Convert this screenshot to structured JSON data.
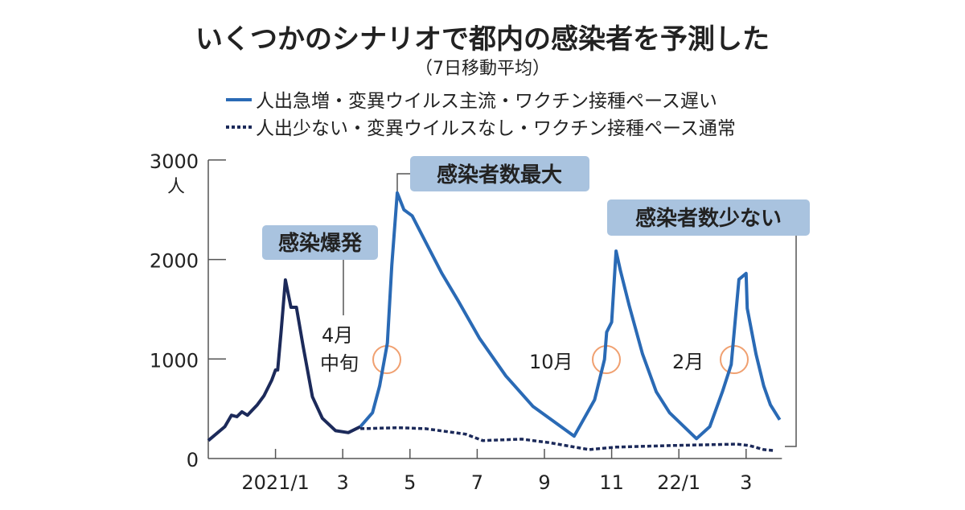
{
  "chart_data": {
    "type": "line",
    "title": "いくつかのシナリオで都内の感染者を予測した",
    "subtitle": "（7日移動平均）",
    "xlabel": "",
    "ylabel": "人",
    "ylim": [
      0,
      3000
    ],
    "xlim": [
      "2020-11-01",
      "2022-04-03"
    ],
    "y_ticks": [
      "0",
      "1000",
      "2000",
      "3000"
    ],
    "y_tick_values": [
      0,
      1000,
      2000,
      3000
    ],
    "x_ticks": [
      {
        "label": "2021/1",
        "date": "2021-01-01"
      },
      {
        "label": "3",
        "date": "2021-03-01"
      },
      {
        "label": "5",
        "date": "2021-05-01"
      },
      {
        "label": "7",
        "date": "2021-07-01"
      },
      {
        "label": "9",
        "date": "2021-09-01"
      },
      {
        "label": "11",
        "date": "2021-11-01"
      },
      {
        "label": "22/1",
        "date": "2022-01-01"
      },
      {
        "label": "3",
        "date": "2022-03-01"
      }
    ],
    "grid": false,
    "legend_position": "top",
    "series": [
      {
        "name": "",
        "style": "solid",
        "color": "#1c2a5a",
        "x": [
          "2020-11-01",
          "2020-11-16",
          "2020-11-22",
          "2020-11-27",
          "2020-12-01",
          "2020-12-06",
          "2020-12-15",
          "2020-12-21",
          "2020-12-28",
          "2021-01-01",
          "2021-01-03",
          "2021-01-06",
          "2021-01-10",
          "2021-01-15",
          "2021-01-20",
          "2021-01-26",
          "2021-02-04",
          "2021-02-13",
          "2021-02-25",
          "2021-03-06",
          "2021-03-17"
        ],
        "y": [
          180,
          320,
          435,
          420,
          470,
          435,
          540,
          630,
          785,
          890,
          890,
          1270,
          1795,
          1520,
          1520,
          1130,
          620,
          405,
          280,
          260,
          320
        ]
      },
      {
        "name": "人出急増・変異ウイルス主流・ワクチン接種ペース遅い",
        "style": "solid",
        "color": "#2a6ab5",
        "x": [
          "2021-03-17",
          "2021-03-28",
          "2021-04-04",
          "2021-04-11",
          "2021-04-15",
          "2021-04-20",
          "2021-04-26",
          "2021-05-03",
          "2021-05-15",
          "2021-05-30",
          "2021-06-14",
          "2021-07-03",
          "2021-07-27",
          "2021-08-21",
          "2021-09-28",
          "2021-10-16",
          "2021-10-25",
          "2021-10-27",
          "2021-11-01",
          "2021-11-05",
          "2021-11-09",
          "2021-11-17",
          "2021-11-29",
          "2021-12-11",
          "2021-12-23",
          "2022-01-17",
          "2022-01-29",
          "2022-02-10",
          "2022-02-18",
          "2022-02-25",
          "2022-03-01",
          "2022-03-02",
          "2022-03-10",
          "2022-03-17",
          "2022-03-23",
          "2022-04-01"
        ],
        "y": [
          320,
          460,
          730,
          1160,
          1940,
          2670,
          2500,
          2440,
          2180,
          1860,
          1590,
          1210,
          830,
          525,
          225,
          590,
          995,
          1270,
          1370,
          2085,
          1885,
          1535,
          1050,
          670,
          460,
          200,
          320,
          670,
          945,
          1800,
          1860,
          1510,
          1050,
          730,
          540,
          390
        ]
      },
      {
        "name": "人出少ない・変異ウイルスなし・ワクチン接種ペース通常",
        "style": "dotted",
        "color": "#1c2a5a",
        "x": [
          "2021-03-17",
          "2021-04-21",
          "2021-05-15",
          "2021-06-21",
          "2021-07-06",
          "2021-08-11",
          "2021-09-05",
          "2021-10-11",
          "2021-11-05",
          "2021-12-23",
          "2022-02-23",
          "2022-03-04",
          "2022-03-17",
          "2022-03-26"
        ],
        "y": [
          300,
          310,
          300,
          245,
          180,
          195,
          160,
          90,
          115,
          130,
          145,
          130,
          90,
          80
        ]
      }
    ],
    "annotations": [
      {
        "text": "感染爆発",
        "kind": "box"
      },
      {
        "text": "感染者数最大",
        "kind": "box"
      },
      {
        "text": "感染者数少ない",
        "kind": "box"
      },
      {
        "text": "4月",
        "kind": "label"
      },
      {
        "text": "中旬",
        "kind": "label"
      },
      {
        "text": "10月",
        "kind": "label"
      },
      {
        "text": "2月",
        "kind": "label"
      }
    ],
    "colors": {
      "box": "#a9c3df",
      "circle": "#f0a070",
      "axis": "#555555"
    }
  }
}
